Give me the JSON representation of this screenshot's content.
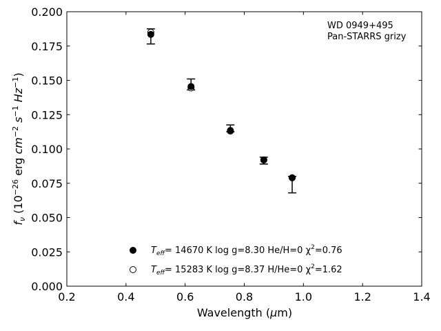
{
  "chart_data": {
    "type": "scatter",
    "annotation": [
      "WD 0949+495",
      "Pan-STARRS grizy"
    ],
    "xlabel": "Wavelength (μm)",
    "ylabel": "f_ν (10^-26 erg cm^-2 s^-1 Hz^-1)",
    "xlim": [
      0.2,
      1.4
    ],
    "ylim": [
      0.0,
      0.2
    ],
    "xticks": [
      "0.2",
      "0.4",
      "0.6",
      "0.8",
      "1.0",
      "1.2",
      "1.4"
    ],
    "yticks": [
      "0.000",
      "0.025",
      "0.050",
      "0.075",
      "0.100",
      "0.125",
      "0.150",
      "0.175",
      "0.200"
    ],
    "grid": false,
    "legend_position": "bottom-center",
    "observed": [
      {
        "x": 0.484,
        "y": 0.182,
        "yerr_low": 0.0055,
        "yerr_high": 0.0055
      },
      {
        "x": 0.62,
        "y": 0.147,
        "yerr_low": 0.004,
        "yerr_high": 0.004
      },
      {
        "x": 0.753,
        "y": 0.115,
        "yerr_low": 0.0025,
        "yerr_high": 0.0025
      },
      {
        "x": 0.866,
        "y": 0.0915,
        "yerr_low": 0.0025,
        "yerr_high": 0.0025
      },
      {
        "x": 0.962,
        "y": 0.074,
        "yerr_low": 0.006,
        "yerr_high": 0.006
      }
    ],
    "series": [
      {
        "marker": "filled-circle",
        "label_teff": "= 14670 K  log g=8.30  He/H=0  χ",
        "label_chi": "=0.76",
        "x": [
          0.484,
          0.62,
          0.753,
          0.866,
          0.962
        ],
        "y": [
          0.1835,
          0.1455,
          0.1135,
          0.092,
          0.079
        ]
      },
      {
        "marker": "open-circle",
        "label_teff": "= 15283 K  log g=8.37  H/He=0  χ",
        "label_chi": "=1.62",
        "x": [
          0.484,
          0.62,
          0.753,
          0.866,
          0.962
        ],
        "y": [
          0.185,
          0.1445,
          0.113,
          0.092,
          0.079
        ]
      }
    ]
  }
}
